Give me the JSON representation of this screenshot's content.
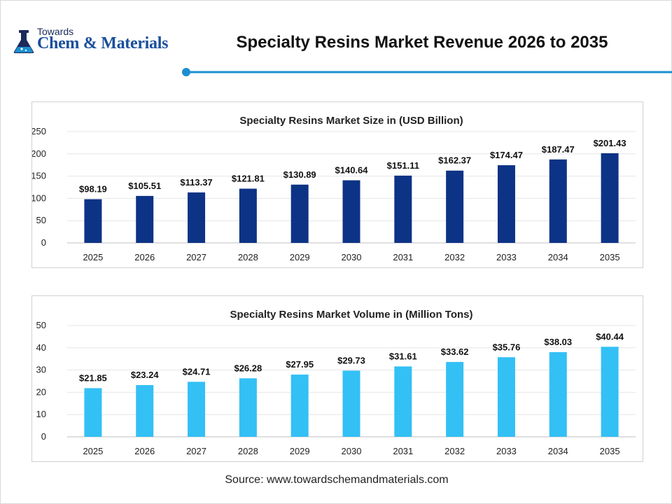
{
  "brand": {
    "line1": "Towards",
    "line2": "Chem & Materials",
    "text_color": "#1a4f9c"
  },
  "header": {
    "title": "Specialty Resins Market Revenue 2026 to 2035",
    "accent_color": "#1b8fd1"
  },
  "chart_data": [
    {
      "type": "bar",
      "title": "Specialty Resins Market Size in (USD Billion)",
      "categories": [
        "2025",
        "2026",
        "2027",
        "2028",
        "2029",
        "2030",
        "2031",
        "2032",
        "2033",
        "2034",
        "2035"
      ],
      "values": [
        98.19,
        105.51,
        113.37,
        121.81,
        130.89,
        140.64,
        151.11,
        162.37,
        174.47,
        187.47,
        201.43
      ],
      "data_labels": [
        "$98.19",
        "$105.51",
        "$113.37",
        "$121.81",
        "$130.89",
        "$140.64",
        "$151.11",
        "$162.37",
        "$174.47",
        "$187.47",
        "$201.43"
      ],
      "yticks": [
        0,
        50,
        100,
        150,
        200,
        250
      ],
      "ylim": [
        0,
        250
      ],
      "xlabel": "",
      "ylabel": "",
      "grid": true,
      "bar_color": "#0d3386"
    },
    {
      "type": "bar",
      "title": "Specialty Resins Market Volume in (Million Tons)",
      "categories": [
        "2025",
        "2026",
        "2027",
        "2028",
        "2029",
        "2030",
        "2031",
        "2032",
        "2033",
        "2034",
        "2035"
      ],
      "values": [
        21.85,
        23.24,
        24.71,
        26.28,
        27.95,
        29.73,
        31.61,
        33.62,
        35.76,
        38.03,
        40.44
      ],
      "data_labels": [
        "$21.85",
        "$23.24",
        "$24.71",
        "$26.28",
        "$27.95",
        "$29.73",
        "$31.61",
        "$33.62",
        "$35.76",
        "$38.03",
        "$40.44"
      ],
      "yticks": [
        0,
        10,
        20,
        30,
        40,
        50
      ],
      "ylim": [
        0,
        50
      ],
      "xlabel": "",
      "ylabel": "",
      "grid": true,
      "bar_color": "#33c0f5"
    }
  ],
  "footer": {
    "source": "Source: www.towardschemandmaterials.com"
  }
}
